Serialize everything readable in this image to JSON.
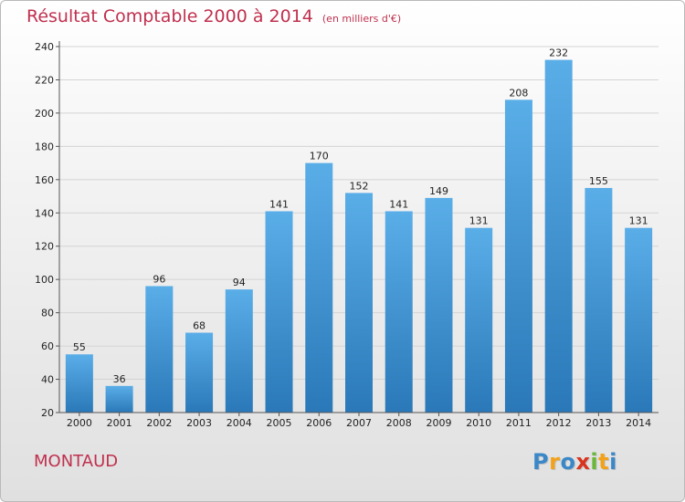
{
  "header": {
    "title": "Résultat Comptable 2000 à 2014",
    "subtitle": "(en milliers d'€)"
  },
  "footer": {
    "commune": "MONTAUD",
    "logo_letters": [
      "P",
      "r",
      "o",
      "x",
      "i",
      "t",
      "i"
    ],
    "logo_colors": [
      "#3a88c8",
      "#f2a21a",
      "#3a88c8",
      "#d8351f",
      "#6ab73a",
      "#f2a21a",
      "#3a88c8"
    ]
  },
  "chart_data": {
    "type": "bar",
    "title": "Résultat Comptable 2000 à 2014",
    "subtitle": "(en milliers d'€)",
    "categories": [
      "2000",
      "2001",
      "2002",
      "2003",
      "2004",
      "2005",
      "2006",
      "2007",
      "2008",
      "2009",
      "2010",
      "2011",
      "2012",
      "2013",
      "2014"
    ],
    "values": [
      55,
      36,
      96,
      68,
      94,
      141,
      170,
      152,
      141,
      149,
      131,
      208,
      232,
      155,
      131
    ],
    "yticks": [
      20,
      40,
      60,
      80,
      100,
      120,
      140,
      160,
      180,
      200,
      220,
      240
    ],
    "ylim": [
      20,
      240
    ],
    "grid": true,
    "bar_color_top": "#5aaee8",
    "bar_color_bottom": "#2a78b8"
  }
}
